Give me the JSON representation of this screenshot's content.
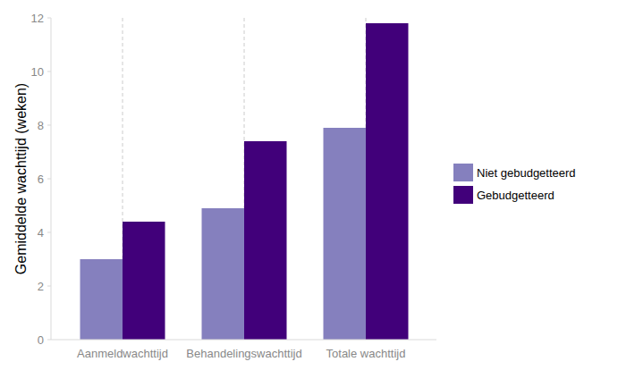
{
  "chart_data": {
    "type": "bar",
    "y_label": "Gemiddelde wachttijd (weken)",
    "categories": [
      "Aanmeldwachttijd",
      "Behandelingswachttijd",
      "Totale wachttijd"
    ],
    "series": [
      {
        "name": "Niet gebudgetteerd",
        "color": "#8580be",
        "values": [
          3.0,
          4.9,
          7.9
        ]
      },
      {
        "name": "Gebudgetteerd",
        "color": "#41007a",
        "values": [
          4.4,
          7.4,
          11.8
        ]
      }
    ],
    "ylim": [
      0,
      12
    ],
    "yticks": [
      0,
      2,
      4,
      6,
      8,
      10,
      12
    ],
    "grid": true,
    "legend": "right"
  }
}
